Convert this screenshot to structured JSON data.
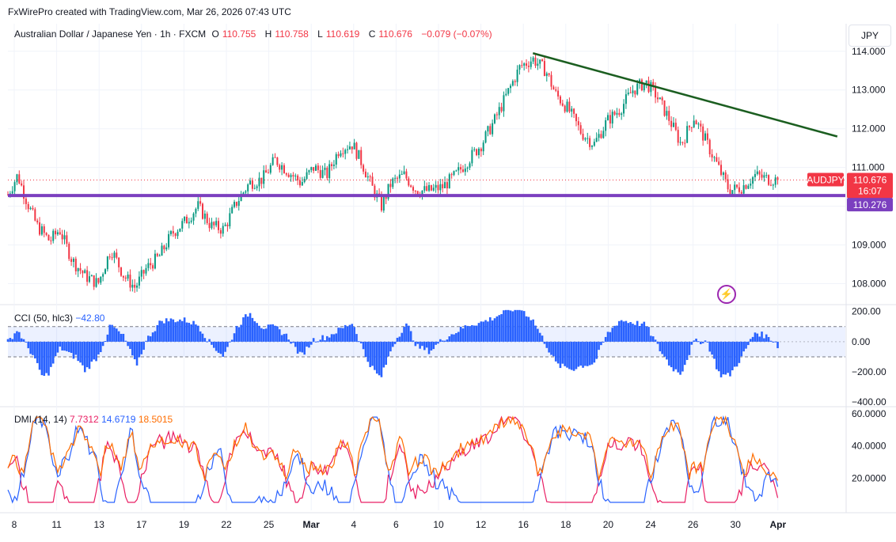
{
  "header": {
    "credit": "FxWirePro created with TradingView.com, Mar 26, 2026 07:43 UTC",
    "symbol": "Australian Dollar / Japanese Yen · 1h · FXCM",
    "open_label": "O",
    "open": "110.755",
    "high_label": "H",
    "high": "110.758",
    "low_label": "L",
    "low": "110.619",
    "close_label": "C",
    "close": "110.676",
    "change": "−0.079 (−0.07%)"
  },
  "currency": "JPY",
  "price_tags": {
    "ticker": "AUDJPY",
    "last": "110.676",
    "countdown": "16:07",
    "support": "110.276"
  },
  "colors": {
    "up": "#089981",
    "down": "#f23645",
    "support": "#7b3fbf",
    "trend": "#1b5e20",
    "cci": "#2962ff",
    "plus_di": "#e91e63",
    "minus_di": "#2962ff",
    "adx": "#ff6d00"
  },
  "icons": {
    "alert": "lightning-bolt-icon"
  },
  "cci_legend": {
    "name": "CCI (50, hlc3)",
    "value": "−42.80"
  },
  "dmi_legend": {
    "name": "DMI (14, 14)",
    "plus_di": "7.7312",
    "minus_di": "14.6719",
    "adx": "18.5015"
  },
  "chart_data": [
    {
      "type": "candlestick",
      "title": "Australian Dollar / Japanese Yen · 1h · FXCM",
      "x": [
        "8",
        "11",
        "13",
        "17",
        "19",
        "22",
        "25",
        "Mar",
        "4",
        "6",
        "10",
        "12",
        "16",
        "18",
        "20",
        "24",
        "26",
        "30",
        "Apr"
      ],
      "ylim": [
        107.5,
        114.2
      ],
      "y_ticks": [
        108.0,
        109.0,
        110.0,
        111.0,
        112.0,
        113.0,
        114.0
      ],
      "y_tick_labels": [
        "108.000",
        "109.000",
        "110.000",
        "111.000",
        "112.000",
        "113.000",
        "114.000"
      ],
      "price_path": [
        [
          0,
          110.3
        ],
        [
          0.6,
          110.8
        ],
        [
          1.2,
          110.1
        ],
        [
          1.8,
          109.5
        ],
        [
          2.6,
          109.1
        ],
        [
          3.2,
          109.4
        ],
        [
          4.0,
          108.6
        ],
        [
          4.8,
          108.2
        ],
        [
          5.6,
          108.0
        ],
        [
          6.4,
          108.9
        ],
        [
          7.2,
          108.2
        ],
        [
          7.9,
          107.9
        ],
        [
          8.6,
          108.4
        ],
        [
          9.4,
          108.7
        ],
        [
          10.2,
          109.3
        ],
        [
          11.0,
          109.6
        ],
        [
          11.8,
          110.0
        ],
        [
          12.6,
          109.5
        ],
        [
          13.4,
          109.4
        ],
        [
          14.2,
          110.1
        ],
        [
          15.0,
          110.6
        ],
        [
          15.8,
          110.7
        ],
        [
          16.6,
          111.2
        ],
        [
          17.4,
          110.9
        ],
        [
          18.2,
          110.6
        ],
        [
          19.0,
          111.0
        ],
        [
          19.8,
          110.8
        ],
        [
          20.6,
          111.5
        ],
        [
          21.4,
          111.6
        ],
        [
          22.0,
          111.1
        ],
        [
          22.6,
          110.5
        ],
        [
          23.2,
          110.0
        ],
        [
          23.8,
          110.6
        ],
        [
          24.6,
          110.8
        ],
        [
          25.4,
          110.4
        ],
        [
          26.2,
          110.4
        ],
        [
          27.0,
          110.5
        ],
        [
          27.8,
          110.8
        ],
        [
          28.6,
          111.2
        ],
        [
          29.4,
          111.6
        ],
        [
          30.2,
          112.2
        ],
        [
          31.0,
          112.9
        ],
        [
          31.8,
          113.6
        ],
        [
          32.6,
          113.8
        ],
        [
          33.4,
          113.5
        ],
        [
          34.0,
          112.9
        ],
        [
          34.8,
          112.5
        ],
        [
          35.6,
          111.9
        ],
        [
          36.4,
          111.6
        ],
        [
          37.2,
          112.2
        ],
        [
          38.0,
          112.5
        ],
        [
          38.8,
          113.0
        ],
        [
          39.6,
          113.2
        ],
        [
          40.2,
          112.9
        ],
        [
          41.0,
          112.3
        ],
        [
          41.8,
          111.6
        ],
        [
          42.6,
          112.3
        ],
        [
          43.2,
          111.8
        ],
        [
          44.0,
          111.1
        ],
        [
          44.8,
          110.4
        ],
        [
          45.6,
          110.5
        ],
        [
          46.4,
          110.8
        ],
        [
          47.2,
          110.7
        ],
        [
          47.8,
          110.68
        ]
      ],
      "support_level": 110.276,
      "trendline": [
        [
          32.6,
          113.95
        ],
        [
          51.5,
          111.8
        ]
      ],
      "last_price": 110.676
    },
    {
      "type": "bar",
      "title": "CCI (50, hlc3)",
      "ylim": [
        -420,
        230
      ],
      "y_ticks": [
        200,
        0,
        -200,
        -400
      ],
      "y_tick_labels": [
        "200.00",
        "0.00",
        "−200.00",
        "−400.00"
      ],
      "bands": [
        100,
        -100
      ],
      "last_value": -42.8
    },
    {
      "type": "line",
      "title": "DMI (14, 14)",
      "ylim": [
        0,
        63
      ],
      "y_ticks": [
        20,
        40,
        60
      ],
      "y_tick_labels": [
        "20.0000",
        "40.0000",
        "60.0000"
      ],
      "series": [
        {
          "name": "+DI",
          "last": 7.7312,
          "color": "#e91e63"
        },
        {
          "name": "−DI",
          "last": 14.6719,
          "color": "#2962ff"
        },
        {
          "name": "ADX",
          "last": 18.5015,
          "color": "#ff6d00"
        }
      ]
    }
  ]
}
